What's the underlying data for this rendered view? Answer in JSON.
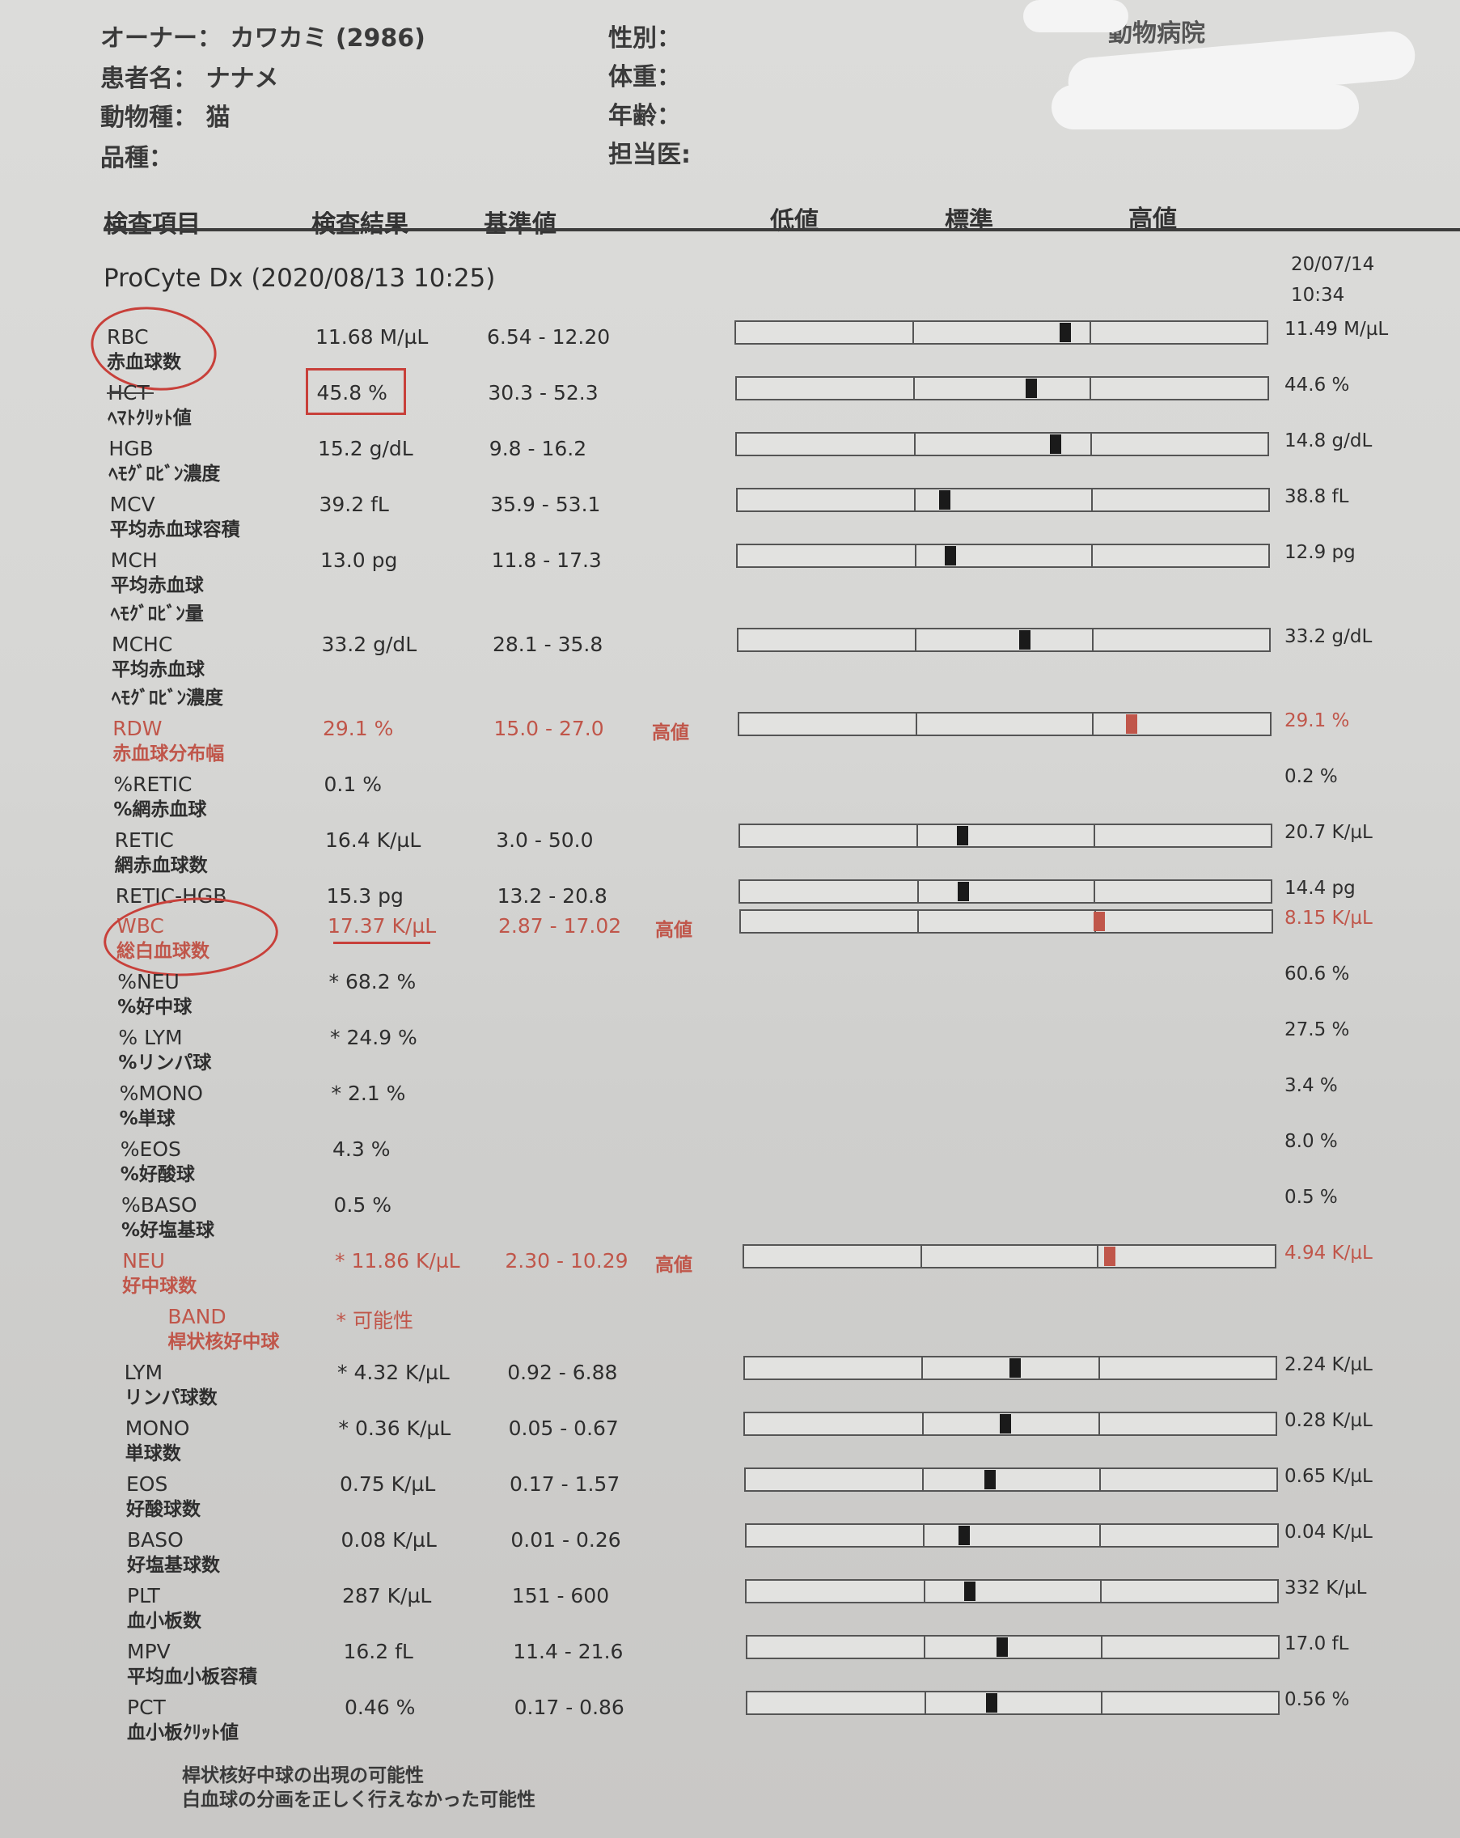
{
  "patient": {
    "owner_label": "オーナー：",
    "owner_value": "カワカミ (2986)",
    "patient_label": "患者名：",
    "patient_value": "ナナメ",
    "species_label": "動物種：",
    "species_value": "猫",
    "breed_label": "品種：",
    "sex_label": "性別：",
    "weight_label": "体重：",
    "age_label": "年齢：",
    "doctor_label": "担当医:",
    "hospital": "動物病院"
  },
  "columns": {
    "item": "検査項目",
    "result": "検査結果",
    "reference": "基準値",
    "low": "低値",
    "normal": "標準",
    "high": "高値"
  },
  "section": {
    "title": "ProCyte Dx (2020/08/13 10:25)",
    "prev_date": "20/07/14",
    "prev_time": "10:34"
  },
  "colors": {
    "abnormal": "#c0564a",
    "marker": "#1a1a1a",
    "annotation": "#c8403a"
  },
  "rows": [
    {
      "code": "RBC",
      "jp": [
        "赤血球数"
      ],
      "result": "11.68 M/µL",
      "range": "6.54 - 12.20",
      "marker": 0.62,
      "prev": "11.49 M/µL"
    },
    {
      "code": "HCT",
      "jp": [
        "ﾍﾏﾄｸﾘｯﾄ値"
      ],
      "result": "45.8 %",
      "range": "30.3 - 52.3",
      "marker": 0.555,
      "prev": "44.6 %"
    },
    {
      "code": "HGB",
      "jp": [
        "ﾍﾓｸﾞﾛﾋﾞﾝ濃度"
      ],
      "result": "15.2 g/dL",
      "range": "9.8 - 16.2",
      "marker": 0.6,
      "prev": "14.8 g/dL"
    },
    {
      "code": "MCV",
      "jp": [
        "平均赤血球容積"
      ],
      "result": "39.2 fL",
      "range": "35.9 - 53.1",
      "marker": 0.39,
      "prev": "38.8 fL"
    },
    {
      "code": "MCH",
      "jp": [
        "平均赤血球",
        "ﾍﾓｸﾞﾛﾋﾞﾝ量"
      ],
      "result": "13.0 pg",
      "range": "11.8 - 17.3",
      "marker": 0.4,
      "prev": "12.9 pg"
    },
    {
      "code": "MCHC",
      "jp": [
        "平均赤血球",
        "ﾍﾓｸﾞﾛﾋﾞﾝ濃度"
      ],
      "result": "33.2 g/dL",
      "range": "28.1 - 35.8",
      "marker": 0.54,
      "prev": "33.2 g/dL"
    },
    {
      "code": "RDW",
      "jp": [
        "赤血球分布幅"
      ],
      "result": "29.1 %",
      "range": "15.0 - 27.0",
      "flag": "高値",
      "abnormal": true,
      "marker": 0.74,
      "prev": "29.1 %"
    },
    {
      "code": "%RETIC",
      "jp": [
        "%網赤血球"
      ],
      "result": "0.1 %",
      "range": "",
      "prev": "0.2 %"
    },
    {
      "code": "RETIC",
      "jp": [
        "網赤血球数"
      ],
      "result": "16.4 K/µL",
      "range": "3.0 - 50.0",
      "marker": 0.42,
      "prev": "20.7 K/µL"
    },
    {
      "code": "RETIC-HGB",
      "jp": [],
      "result": "15.3 pg",
      "range": "13.2 - 20.8",
      "marker": 0.42,
      "prev": "14.4 pg"
    },
    {
      "code": "WBC",
      "jp": [
        "総白血球数"
      ],
      "result": "17.37 K/µL",
      "range": "2.87 - 17.02",
      "flag": "高値",
      "abnormal": true,
      "marker": 0.675,
      "prev": "8.15 K/µL"
    },
    {
      "code": "%NEU",
      "jp": [
        "%好中球"
      ],
      "result": "* 68.2 %",
      "range": "",
      "prev": "60.6 %"
    },
    {
      "code": "% LYM",
      "jp": [
        "%リンパ球"
      ],
      "result": "* 24.9 %",
      "range": "",
      "prev": "27.5 %"
    },
    {
      "code": "%MONO",
      "jp": [
        "%単球"
      ],
      "result": "* 2.1 %",
      "range": "",
      "prev": "3.4 %"
    },
    {
      "code": "%EOS",
      "jp": [
        "%好酸球"
      ],
      "result": "4.3 %",
      "range": "",
      "prev": "8.0 %"
    },
    {
      "code": "%BASO",
      "jp": [
        "%好塩基球"
      ],
      "result": "0.5 %",
      "range": "",
      "prev": "0.5 %"
    },
    {
      "code": "NEU",
      "jp": [
        "好中球数"
      ],
      "result": "* 11.86 K/µL",
      "range": "2.30 - 10.29",
      "flag": "高値",
      "abnormal": true,
      "marker": 0.69,
      "prev": "4.94 K/µL"
    },
    {
      "code": "BAND",
      "jp": [
        "桿状核好中球"
      ],
      "result": "* 可能性",
      "range": "",
      "abnormal": true,
      "indent": true
    },
    {
      "code": "LYM",
      "jp": [
        "リンパ球数"
      ],
      "result": "* 4.32 K/µL",
      "range": "0.92 - 6.88",
      "marker": 0.51,
      "prev": "2.24 K/µL"
    },
    {
      "code": "MONO",
      "jp": [
        "単球数"
      ],
      "result": "* 0.36 K/µL",
      "range": "0.05 - 0.67",
      "marker": 0.49,
      "prev": "0.28 K/µL"
    },
    {
      "code": "EOS",
      "jp": [
        "好酸球数"
      ],
      "result": "0.75 K/µL",
      "range": "0.17 - 1.57",
      "marker": 0.46,
      "prev": "0.65 K/µL"
    },
    {
      "code": "BASO",
      "jp": [
        "好塩基球数"
      ],
      "result": "0.08 K/µL",
      "range": "0.01 - 0.26",
      "marker": 0.41,
      "prev": "0.04 K/µL"
    },
    {
      "code": "PLT",
      "jp": [
        "血小板数"
      ],
      "result": "287 K/µL",
      "range": "151 - 600",
      "marker": 0.42,
      "prev": "332 K/µL"
    },
    {
      "code": "MPV",
      "jp": [
        "平均血小板容積"
      ],
      "result": "16.2 fL",
      "range": "11.4 - 21.6",
      "marker": 0.48,
      "prev": "17.0 fL"
    },
    {
      "code": "PCT",
      "jp": [
        "血小板ｸﾘｯﾄ値"
      ],
      "result": "0.46 %",
      "range": "0.17 - 0.86",
      "marker": 0.46,
      "prev": "0.56 %"
    }
  ],
  "footnotes": [
    "桿状核好中球の出現の可能性",
    "白血球の分画を正しく行えなかった可能性"
  ]
}
